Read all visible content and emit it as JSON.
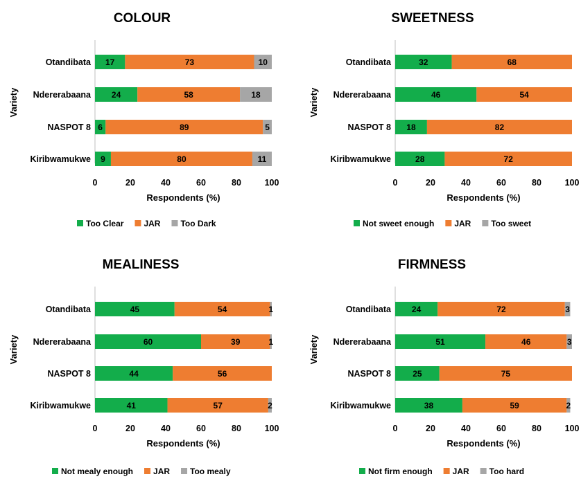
{
  "colors": {
    "green": "#13ad4b",
    "orange": "#ee7d31",
    "gray": "#a6a6a6"
  },
  "chart_data": [
    {
      "type": "bar",
      "orientation": "horizontal-stacked",
      "title": "COLOUR",
      "xlabel": "Respondents (%)",
      "ylabel": "Variety",
      "xlim": [
        0,
        100
      ],
      "xticks": [
        "0",
        "20",
        "40",
        "60",
        "80",
        "100"
      ],
      "grid": false,
      "legend_position": "bottom",
      "categories": [
        "Otandibata",
        "Ndererabaana",
        "NASPOT 8",
        "Kiribwamukwe"
      ],
      "series": [
        {
          "name": "Too Clear",
          "values": [
            17,
            24,
            6,
            9
          ]
        },
        {
          "name": "JAR",
          "values": [
            73,
            58,
            89,
            80
          ]
        },
        {
          "name": "Too Dark",
          "values": [
            10,
            18,
            5,
            11
          ]
        }
      ]
    },
    {
      "type": "bar",
      "orientation": "horizontal-stacked",
      "title": "SWEETNESS",
      "xlabel": "Respondents (%)",
      "ylabel": "Variety",
      "xlim": [
        0,
        100
      ],
      "xticks": [
        "0",
        "20",
        "40",
        "60",
        "80",
        "100"
      ],
      "grid": false,
      "legend_position": "bottom",
      "categories": [
        "Otandibata",
        "Ndererabaana",
        "NASPOT 8",
        "Kiribwamukwe"
      ],
      "series": [
        {
          "name": "Not sweet enough",
          "values": [
            32,
            46,
            18,
            28
          ]
        },
        {
          "name": "JAR",
          "values": [
            68,
            54,
            82,
            72
          ]
        },
        {
          "name": "Too sweet",
          "values": [
            0,
            0,
            0,
            0
          ]
        }
      ]
    },
    {
      "type": "bar",
      "orientation": "horizontal-stacked",
      "title": "MEALINESS",
      "xlabel": "Respondents (%)",
      "ylabel": "Variety",
      "xlim": [
        0,
        100
      ],
      "xticks": [
        "0",
        "20",
        "40",
        "60",
        "80",
        "100"
      ],
      "grid": false,
      "legend_position": "bottom",
      "categories": [
        "Otandibata",
        "Ndererabaana",
        "NASPOT 8",
        "Kiribwamukwe"
      ],
      "series": [
        {
          "name": "Not mealy enough",
          "values": [
            45,
            60,
            44,
            41
          ]
        },
        {
          "name": "JAR",
          "values": [
            54,
            39,
            56,
            57
          ]
        },
        {
          "name": "Too mealy",
          "values": [
            1,
            1,
            0,
            2
          ]
        }
      ]
    },
    {
      "type": "bar",
      "orientation": "horizontal-stacked",
      "title": "FIRMNESS",
      "xlabel": "Respondents (%)",
      "ylabel": "Variety",
      "xlim": [
        0,
        100
      ],
      "xticks": [
        "0",
        "20",
        "40",
        "60",
        "80",
        "100"
      ],
      "grid": false,
      "legend_position": "bottom",
      "categories": [
        "Otandibata",
        "Ndererabaana",
        "NASPOT 8",
        "Kiribwamukwe"
      ],
      "series": [
        {
          "name": "Not firm enough",
          "values": [
            24,
            51,
            25,
            38
          ]
        },
        {
          "name": "JAR",
          "values": [
            72,
            46,
            75,
            59
          ]
        },
        {
          "name": "Too hard",
          "values": [
            3,
            3,
            0,
            2
          ]
        }
      ]
    }
  ]
}
